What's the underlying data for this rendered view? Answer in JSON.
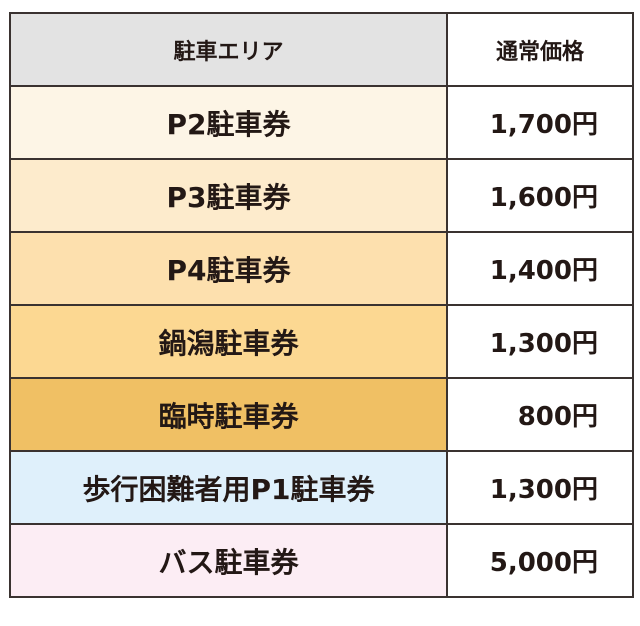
{
  "header": {
    "area": "駐車エリア",
    "price": "通常価格"
  },
  "rows": [
    {
      "area": "P2駐車券",
      "price": "1,700円",
      "color": "#fdf5e6"
    },
    {
      "area": "P3駐車券",
      "price": "1,600円",
      "color": "#fdebcc"
    },
    {
      "area": "P4駐車券",
      "price": "1,400円",
      "color": "#fde0ae"
    },
    {
      "area": "鍋潟駐車券",
      "price": "1,300円",
      "color": "#fcd892"
    },
    {
      "area": "臨時駐車券",
      "price": "800円",
      "color": "#f0c064"
    },
    {
      "area": "歩行困難者用P1駐車券",
      "price": "1,300円",
      "color": "#dff0fb"
    },
    {
      "area": "バス駐車券",
      "price": "5,000円",
      "color": "#fcedf4"
    }
  ]
}
